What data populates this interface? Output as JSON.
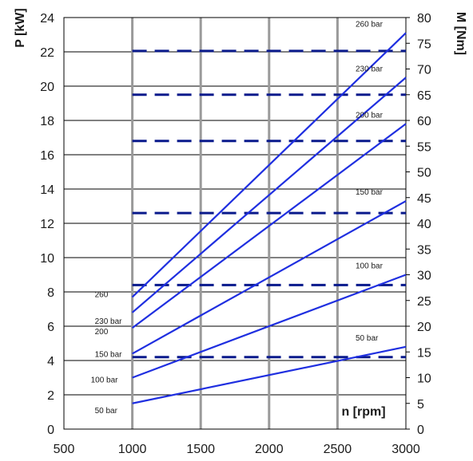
{
  "chart_data": {
    "type": "line",
    "xlabel": "n [rpm]",
    "ylabel_left": "P [kW]",
    "ylabel_right": "M [Nm]",
    "xlim": [
      500,
      3000
    ],
    "ylim_left": [
      0,
      24
    ],
    "ylim_right": [
      0,
      80
    ],
    "x_ticks": [
      "500",
      "1000",
      "1500",
      "2000",
      "2500",
      "3000"
    ],
    "y_left_ticks": [
      "0",
      "2",
      "4",
      "6",
      "8",
      "10",
      "12",
      "14",
      "16",
      "18",
      "20",
      "22",
      "24"
    ],
    "y_right_ticks": [
      "0",
      "5",
      "10",
      "15",
      "20",
      "25",
      "30",
      "35",
      "40",
      "45",
      "50",
      "55",
      "60",
      "65",
      "70",
      "75",
      "80"
    ],
    "grid": true,
    "colors": {
      "series": "#1f2fe0",
      "torque": "#0a1a8c",
      "grid_major": "#000000",
      "grid_vertical": "#9a9a9a"
    },
    "power_series": [
      {
        "name": "260 bar",
        "start_label": "260",
        "end_label": "260 bar",
        "x": [
          1000,
          3000
        ],
        "y": [
          7.7,
          23.1
        ]
      },
      {
        "name": "230 bar",
        "start_label": "230 bar",
        "end_label": "230 bar",
        "x": [
          1000,
          3000
        ],
        "y": [
          6.8,
          20.5
        ]
      },
      {
        "name": "200 bar",
        "start_label": "200",
        "end_label": "200 bar",
        "x": [
          1000,
          3000
        ],
        "y": [
          5.9,
          17.8
        ]
      },
      {
        "name": "150 bar",
        "start_label": "150 bar",
        "end_label": "150 bar",
        "x": [
          1000,
          3000
        ],
        "y": [
          4.4,
          13.3
        ]
      },
      {
        "name": "100 bar",
        "start_label": "100 bar",
        "end_label": "100 bar",
        "x": [
          1000,
          3000
        ],
        "y": [
          3.0,
          9.0
        ]
      },
      {
        "name": "50 bar",
        "start_label": "50 bar",
        "end_label": "50 bar",
        "x": [
          1000,
          3000
        ],
        "y": [
          1.5,
          4.8
        ]
      }
    ],
    "torque_series": [
      {
        "name": "260 bar",
        "axis": "right",
        "x": [
          1000,
          3000
        ],
        "y": [
          73.5,
          73.5
        ]
      },
      {
        "name": "230 bar",
        "axis": "right",
        "x": [
          1000,
          3000
        ],
        "y": [
          65,
          65
        ]
      },
      {
        "name": "200 bar",
        "axis": "right",
        "x": [
          1000,
          3000
        ],
        "y": [
          56,
          56
        ]
      },
      {
        "name": "150 bar",
        "axis": "right",
        "x": [
          1000,
          3000
        ],
        "y": [
          42,
          42
        ]
      },
      {
        "name": "100 bar",
        "axis": "right",
        "x": [
          1000,
          3000
        ],
        "y": [
          28,
          28
        ]
      },
      {
        "name": "50 bar",
        "axis": "right",
        "x": [
          1000,
          3000
        ],
        "y": [
          14,
          14
        ]
      }
    ]
  }
}
